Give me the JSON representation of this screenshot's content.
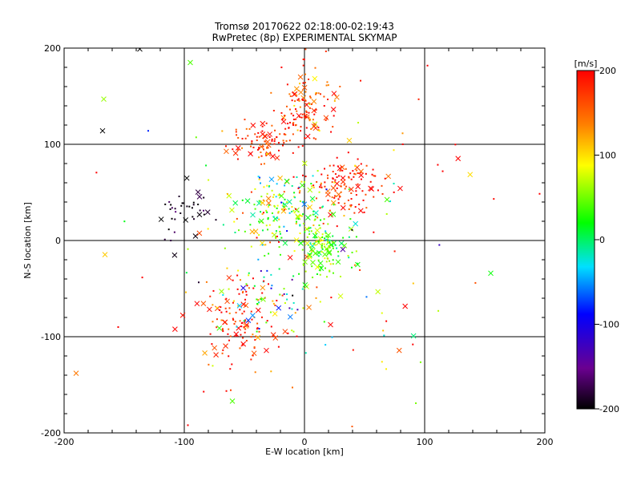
{
  "chart_data": {
    "type": "scatter",
    "title": "Tromsø 20170622 02:18:00-02:19:43",
    "subtitle": "RwPretec (8p) EXPERIMENTAL SKYMAP",
    "xlabel": "E-W location [km]",
    "ylabel": "N-S location [km]",
    "xlim": [
      -200,
      200
    ],
    "ylim": [
      -200,
      200
    ],
    "xticks": [
      "-200",
      "-100",
      "0",
      "100",
      "200"
    ],
    "yticks": [
      "-200",
      "-100",
      "0",
      "100",
      "200"
    ],
    "grid": true,
    "gridlines_at": [
      -100,
      0,
      100
    ],
    "colorbar": {
      "label": "[m/s]",
      "min": -200,
      "max": 200,
      "ticks": [
        "200",
        "100",
        "0",
        "-100",
        "-200"
      ],
      "colormap": "rainbow: black -> purple -> blue -> cyan -> green -> yellow -> orange -> red"
    },
    "marker_types": [
      "small-dot",
      "cross"
    ],
    "clusters": [
      {
        "cx": 0,
        "cy": 140,
        "sx": 12,
        "sy": 20,
        "n": 120,
        "v": 170,
        "vs": 35
      },
      {
        "cx": -30,
        "cy": 105,
        "sx": 14,
        "sy": 10,
        "n": 90,
        "v": 180,
        "vs": 25
      },
      {
        "cx": -15,
        "cy": 30,
        "sx": 22,
        "sy": 22,
        "n": 180,
        "v": 40,
        "vs": 55
      },
      {
        "cx": 35,
        "cy": 60,
        "sx": 16,
        "sy": 14,
        "n": 110,
        "v": 185,
        "vs": 25
      },
      {
        "cx": 15,
        "cy": -10,
        "sx": 12,
        "sy": 14,
        "n": 130,
        "v": 40,
        "vs": 40
      },
      {
        "cx": -55,
        "cy": -90,
        "sx": 16,
        "sy": 22,
        "n": 110,
        "v": 180,
        "vs": 30
      },
      {
        "cx": -100,
        "cy": 30,
        "sx": 10,
        "sy": 15,
        "n": 40,
        "v": -190,
        "vs": 15
      },
      {
        "cx": -40,
        "cy": -60,
        "sx": 25,
        "sy": 15,
        "n": 70,
        "v": 20,
        "vs": 120
      },
      {
        "cx": 0,
        "cy": 0,
        "sx": 60,
        "sy": 80,
        "n": 140,
        "v": 120,
        "vs": 120
      }
    ],
    "outlier_points": [
      {
        "x": -167,
        "y": 147,
        "v": 60,
        "m": "cross"
      },
      {
        "x": -168,
        "y": 114,
        "v": -200,
        "m": "cross"
      },
      {
        "x": -190,
        "y": -138,
        "v": 140,
        "m": "cross"
      },
      {
        "x": -60,
        "y": -167,
        "v": 40,
        "m": "cross"
      },
      {
        "x": 155,
        "y": -34,
        "v": 20,
        "m": "cross"
      },
      {
        "x": -95,
        "y": 185,
        "v": 40,
        "m": "cross"
      },
      {
        "x": -137,
        "y": 199,
        "v": -200,
        "m": "cross"
      },
      {
        "x": -97,
        "y": -192,
        "v": 200,
        "m": "dot"
      },
      {
        "x": 115,
        "y": 72,
        "v": 200,
        "m": "dot"
      },
      {
        "x": -155,
        "y": -90,
        "v": 200,
        "m": "dot"
      },
      {
        "x": -130,
        "y": 114,
        "v": -80,
        "m": "dot"
      }
    ]
  }
}
